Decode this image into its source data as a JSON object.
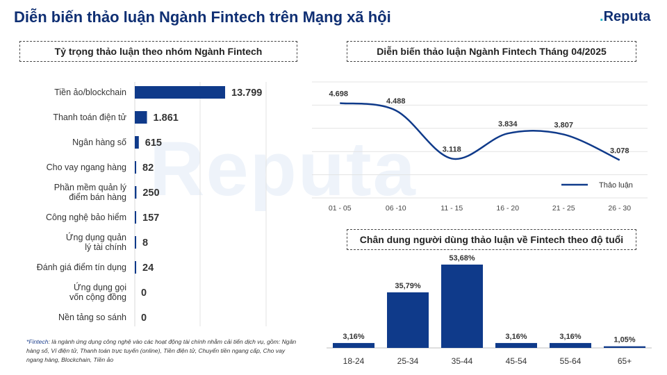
{
  "header": {
    "title": "Diễn biến thảo luận Ngành Fintech trên Mạng xã hội",
    "logo": "Reputa",
    "watermark": "Reputa"
  },
  "footnote": {
    "label": "*Fintech",
    "text": ": là ngành ứng dụng công nghệ vào các hoạt động tài chính nhằm cải tiến dịch vụ, gồm: Ngân hàng số, Ví điện tử, Thanh toán trực tuyến (online), Tiền điện tử, Chuyển tiền ngang cấp, Cho vay ngang hàng, Blockchain, Tiền ảo"
  },
  "colors": {
    "bar": "#0f3a8a",
    "title": "#0f2f73",
    "accent": "#1fb5c8"
  },
  "chart_data": [
    {
      "type": "bar",
      "orientation": "horizontal",
      "title": "Tỷ trọng thảo luận theo nhóm Ngành Fintech",
      "categories": [
        "Tiền ảo/blockchain",
        "Thanh toán điện tử",
        "Ngân hàng số",
        "Cho vay ngang hàng",
        "Phần mềm quản lý điểm bán hàng",
        "Công nghệ bảo hiểm",
        "Ứng dụng quản lý tài chính",
        "Đánh giá điểm tín dụng",
        "Ứng dụng gọi vốn cộng đồng",
        "Nền tảng so sánh"
      ],
      "values": [
        13799,
        1861,
        615,
        82,
        250,
        157,
        8,
        24,
        0,
        0
      ],
      "value_labels": [
        "13.799",
        "1.861",
        "615",
        "82",
        "250",
        "157",
        "8",
        "24",
        "0",
        "0"
      ],
      "grid": true
    },
    {
      "type": "line",
      "title": "Diễn biến thảo luận Ngành Fintech Tháng 04/2025",
      "categories": [
        "01 - 05",
        "06 -10",
        "11 - 15",
        "16 - 20",
        "21 - 25",
        "26 - 30"
      ],
      "series": [
        {
          "name": "Thảo luận",
          "values": [
            4698,
            4488,
            3118,
            3834,
            3807,
            3078
          ],
          "value_labels": [
            "4.698",
            "4.488",
            "3.118",
            "3.834",
            "3.807",
            "3.078"
          ]
        }
      ],
      "legend": "bottom-right",
      "grid": true
    },
    {
      "type": "bar",
      "title": "Chân dung người dùng thảo luận về Fintech theo độ tuổi",
      "categories": [
        "18-24",
        "25-34",
        "35-44",
        "45-54",
        "55-64",
        "65+"
      ],
      "values": [
        3.16,
        35.79,
        53.68,
        3.16,
        3.16,
        1.05
      ],
      "value_labels": [
        "3,16%",
        "35,79%",
        "53,68%",
        "3,16%",
        "3,16%",
        "1,05%"
      ]
    }
  ]
}
